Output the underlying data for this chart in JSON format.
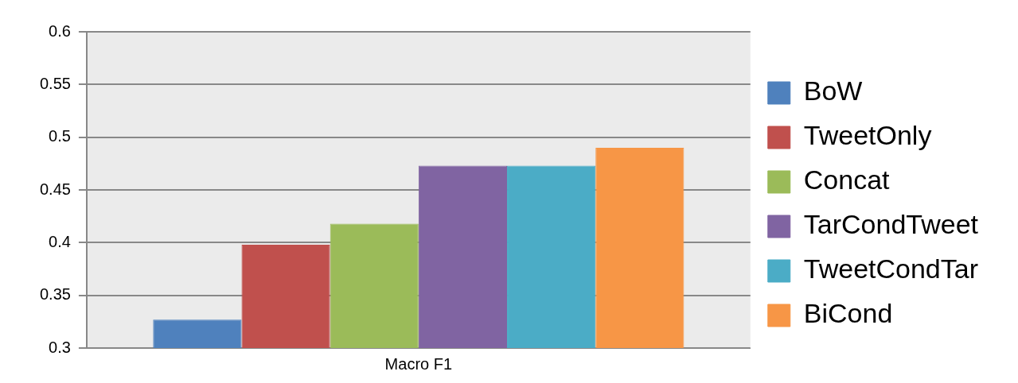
{
  "chart_data": {
    "type": "bar",
    "categories": [
      "Macro F1"
    ],
    "series": [
      {
        "name": "BoW",
        "color": "#4f81bd",
        "values": [
          0.327
        ]
      },
      {
        "name": "TweetOnly",
        "color": "#c0504d",
        "values": [
          0.398
        ]
      },
      {
        "name": "Concat",
        "color": "#9bbb59",
        "values": [
          0.418
        ]
      },
      {
        "name": "TarCondTweet",
        "color": "#8064a2",
        "values": [
          0.473
        ]
      },
      {
        "name": "TweetCondTar",
        "color": "#4bacc6",
        "values": [
          0.473
        ]
      },
      {
        "name": "BiCond",
        "color": "#f79646",
        "values": [
          0.49
        ]
      }
    ],
    "ylim": [
      0.3,
      0.6
    ],
    "yticks": [
      0.3,
      0.35,
      0.4,
      0.45,
      0.5,
      0.55,
      0.6
    ],
    "grid": "y",
    "legend": "right"
  }
}
